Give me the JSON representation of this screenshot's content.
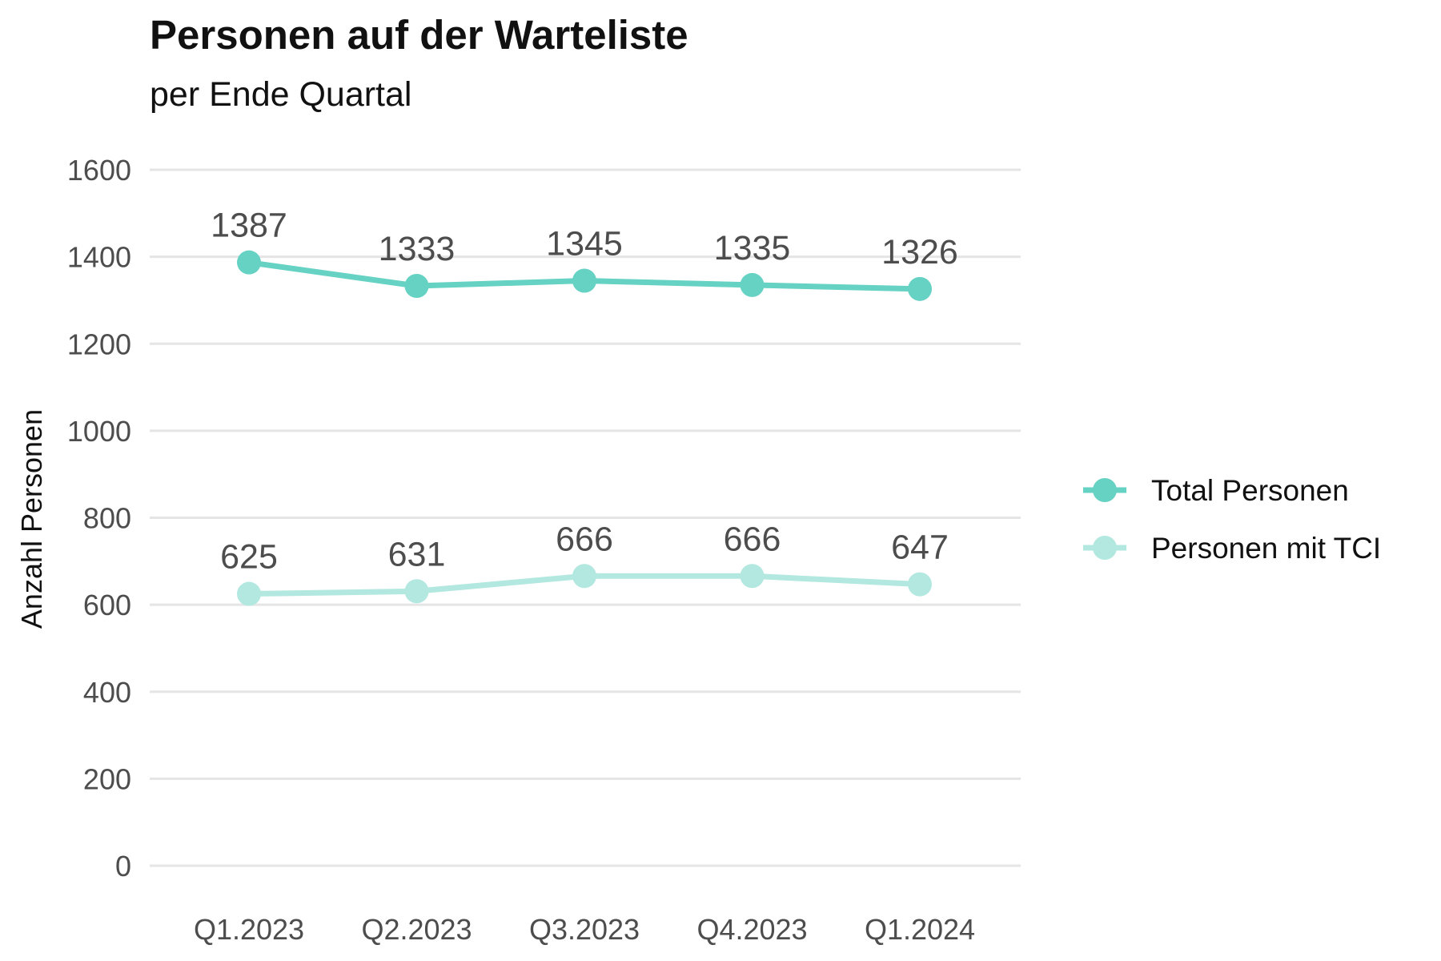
{
  "chart_data": {
    "type": "line",
    "title": "Personen auf der Warteliste",
    "subtitle": "per Ende Quartal",
    "xlabel": "",
    "ylabel": "Anzahl Personen",
    "categories": [
      "Q1.2023",
      "Q2.2023",
      "Q3.2023",
      "Q4.2023",
      "Q1.2024"
    ],
    "ylim": [
      0,
      1600
    ],
    "yticks": [
      "0",
      "200",
      "400",
      "600",
      "800",
      "1000",
      "1200",
      "1400",
      "1600"
    ],
    "grid": "horizontal",
    "legend_position": "right",
    "series": [
      {
        "name": "Total Personen",
        "color": "#66d2c3",
        "values": [
          1387,
          1333,
          1345,
          1335,
          1326
        ],
        "labels": [
          "1387",
          "1333",
          "1345",
          "1335",
          "1326"
        ]
      },
      {
        "name": "Personen mit TCI",
        "color": "#b2e8e0",
        "values": [
          625,
          631,
          666,
          666,
          647
        ],
        "labels": [
          "625",
          "631",
          "666",
          "666",
          "647"
        ]
      }
    ]
  }
}
